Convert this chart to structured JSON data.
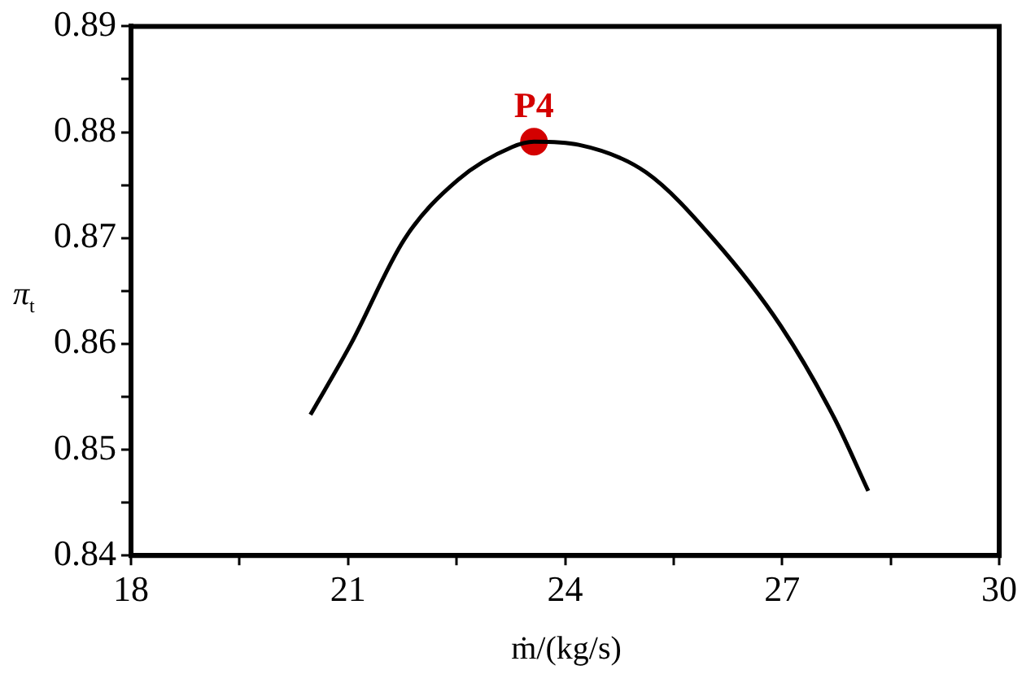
{
  "chart_data": {
    "type": "line",
    "xlabel": "ṁ/(kg/s)",
    "ylabel": "π$_{t}$",
    "series": [
      {
        "color": "#000000",
        "marker": "none",
        "x": [
          20.48,
          21.04,
          21.78,
          22.52,
          23.27,
          23.57,
          24.19,
          25.12,
          26.05,
          26.98,
          27.72,
          28.19
        ],
        "values": [
          0.8533,
          0.86,
          0.8699,
          0.8755,
          0.8786,
          0.8791,
          0.8788,
          0.8762,
          0.8699,
          0.8617,
          0.853,
          0.8461
        ]
      },
      {
        "type": "scatter",
        "name": "P4",
        "color": "#d40000",
        "marker": "circle",
        "x": [
          23.57
        ],
        "values": [
          0.8791
        ]
      }
    ],
    "xlim": [
      18,
      30
    ],
    "ylim": [
      0.84,
      0.89
    ],
    "xticks": [
      18,
      {
        "value": 19.5,
        "label": null
      },
      21,
      {
        "value": 22.5,
        "label": null
      },
      24,
      {
        "value": 25.5,
        "label": null
      },
      27,
      {
        "value": 28.5,
        "label": null
      },
      30
    ],
    "yticks": [
      0.84,
      {
        "value": 0.845,
        "label": null
      },
      0.85,
      {
        "value": 0.855,
        "label": null
      },
      0.86,
      {
        "value": 0.865,
        "label": null
      },
      0.87,
      {
        "value": 0.875,
        "label": null
      },
      0.88,
      {
        "value": 0.885,
        "label": null
      },
      0.89
    ],
    "grid": false,
    "legend": false
  }
}
